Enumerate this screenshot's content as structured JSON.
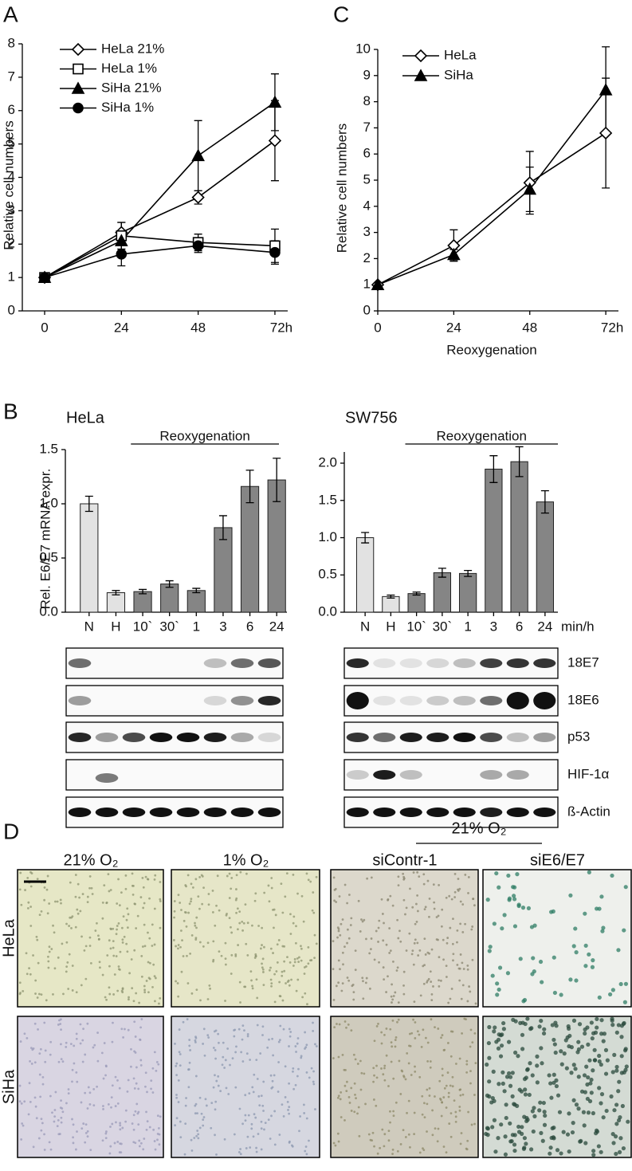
{
  "panel_labels": [
    "A",
    "C",
    "B",
    "D"
  ],
  "chart_data": [
    {
      "type": "line",
      "ylabel": "Relative cell numbers",
      "x": [
        0,
        24,
        48,
        72
      ],
      "xlim": [
        0,
        76
      ],
      "xticks": [
        0,
        24,
        48,
        {
          "value": 72,
          "label": "72h"
        }
      ],
      "ylim": [
        0,
        8
      ],
      "yticks": [
        0,
        1,
        2,
        3,
        4,
        5,
        6,
        7,
        8
      ],
      "series": [
        {
          "name": "HeLa 21%",
          "color": "#000000",
          "marker": "diamond-open",
          "values": [
            1,
            2.35,
            3.4,
            5.1
          ],
          "errors": [
            0,
            0.3,
            0.2,
            1.2
          ]
        },
        {
          "name": "HeLa 1%",
          "color": "#000000",
          "marker": "square-open",
          "values": [
            1,
            2.25,
            2.05,
            1.95
          ],
          "errors": [
            0,
            0.4,
            0.25,
            0.5
          ]
        },
        {
          "name": "SiHa 21%",
          "color": "#000000",
          "marker": "triangle",
          "values": [
            1,
            2.1,
            4.65,
            6.25
          ],
          "errors": [
            0,
            0.25,
            1.05,
            0.85
          ]
        },
        {
          "name": "SiHa 1%",
          "color": "#000000",
          "marker": "circle",
          "values": [
            1,
            1.7,
            1.95,
            1.75
          ],
          "errors": [
            0,
            0.35,
            0.2,
            0.35
          ]
        }
      ]
    },
    {
      "type": "line",
      "ylabel": "Relative cell numbers",
      "xlabel": "Reoxygenation",
      "x": [
        0,
        24,
        48,
        72
      ],
      "xlim": [
        0,
        76
      ],
      "xticks": [
        0,
        24,
        48,
        {
          "value": 72,
          "label": "72h"
        }
      ],
      "ylim": [
        0,
        10
      ],
      "yticks": [
        0,
        1,
        2,
        3,
        4,
        5,
        6,
        7,
        8,
        9,
        10
      ],
      "series": [
        {
          "name": "HeLa",
          "color": "#000000",
          "marker": "diamond-open",
          "values": [
            1,
            2.5,
            4.9,
            6.8
          ],
          "errors": [
            0,
            0.6,
            1.2,
            2.1
          ]
        },
        {
          "name": "SiHa",
          "color": "#000000",
          "marker": "triangle",
          "values": [
            1,
            2.15,
            4.65,
            8.45
          ],
          "errors": [
            0,
            0.2,
            0.85,
            1.65
          ]
        }
      ]
    },
    {
      "type": "bar",
      "title": "HeLa",
      "ylabel": "Rel. E6/E7 mRNA expr.",
      "annotation": "Reoxygenation",
      "categories": [
        "N",
        "H",
        "10`",
        "30`",
        "1",
        "3",
        "6",
        "24"
      ],
      "values": [
        1.0,
        0.18,
        0.19,
        0.26,
        0.2,
        0.78,
        1.16,
        1.22
      ],
      "errors": [
        0.07,
        0.02,
        0.02,
        0.03,
        0.02,
        0.11,
        0.15,
        0.2
      ],
      "colors": [
        "#e2e2e2",
        "#e2e2e2",
        "#858585",
        "#858585",
        "#858585",
        "#858585",
        "#858585",
        "#858585"
      ],
      "ylim": [
        0,
        1.5
      ],
      "yticks": [
        {
          "value": 0,
          "label": "0.0"
        },
        0.5,
        {
          "value": 1,
          "label": "1.0"
        },
        1.5
      ]
    },
    {
      "type": "bar",
      "title": "SW756",
      "annotation": "Reoxygenation",
      "unit": "min/h",
      "categories": [
        "N",
        "H",
        "10`",
        "30`",
        "1",
        "3",
        "6",
        "24"
      ],
      "values": [
        1.0,
        0.21,
        0.25,
        0.53,
        0.52,
        1.92,
        2.02,
        1.48
      ],
      "errors": [
        0.07,
        0.02,
        0.02,
        0.06,
        0.04,
        0.18,
        0.2,
        0.15
      ],
      "colors": [
        "#e2e2e2",
        "#e2e2e2",
        "#858585",
        "#858585",
        "#858585",
        "#858585",
        "#858585",
        "#858585"
      ],
      "ylim": [
        0,
        2.15
      ],
      "yticks": [
        {
          "value": 0,
          "label": "0.0"
        },
        0.5,
        {
          "value": 1,
          "label": "1.0"
        },
        1.5,
        {
          "value": 2,
          "label": "2.0"
        }
      ]
    }
  ],
  "blots": {
    "labels": [
      "18E7",
      "18E6",
      "p53",
      "HIF-1α",
      "ß-Actin"
    ]
  },
  "micrographs": {
    "group_header": "21% O₂",
    "columns": [
      "21% O₂",
      "1% O₂",
      "siContr-1",
      "siE6/E7"
    ],
    "rows": [
      "HeLa",
      "SiHa"
    ]
  }
}
